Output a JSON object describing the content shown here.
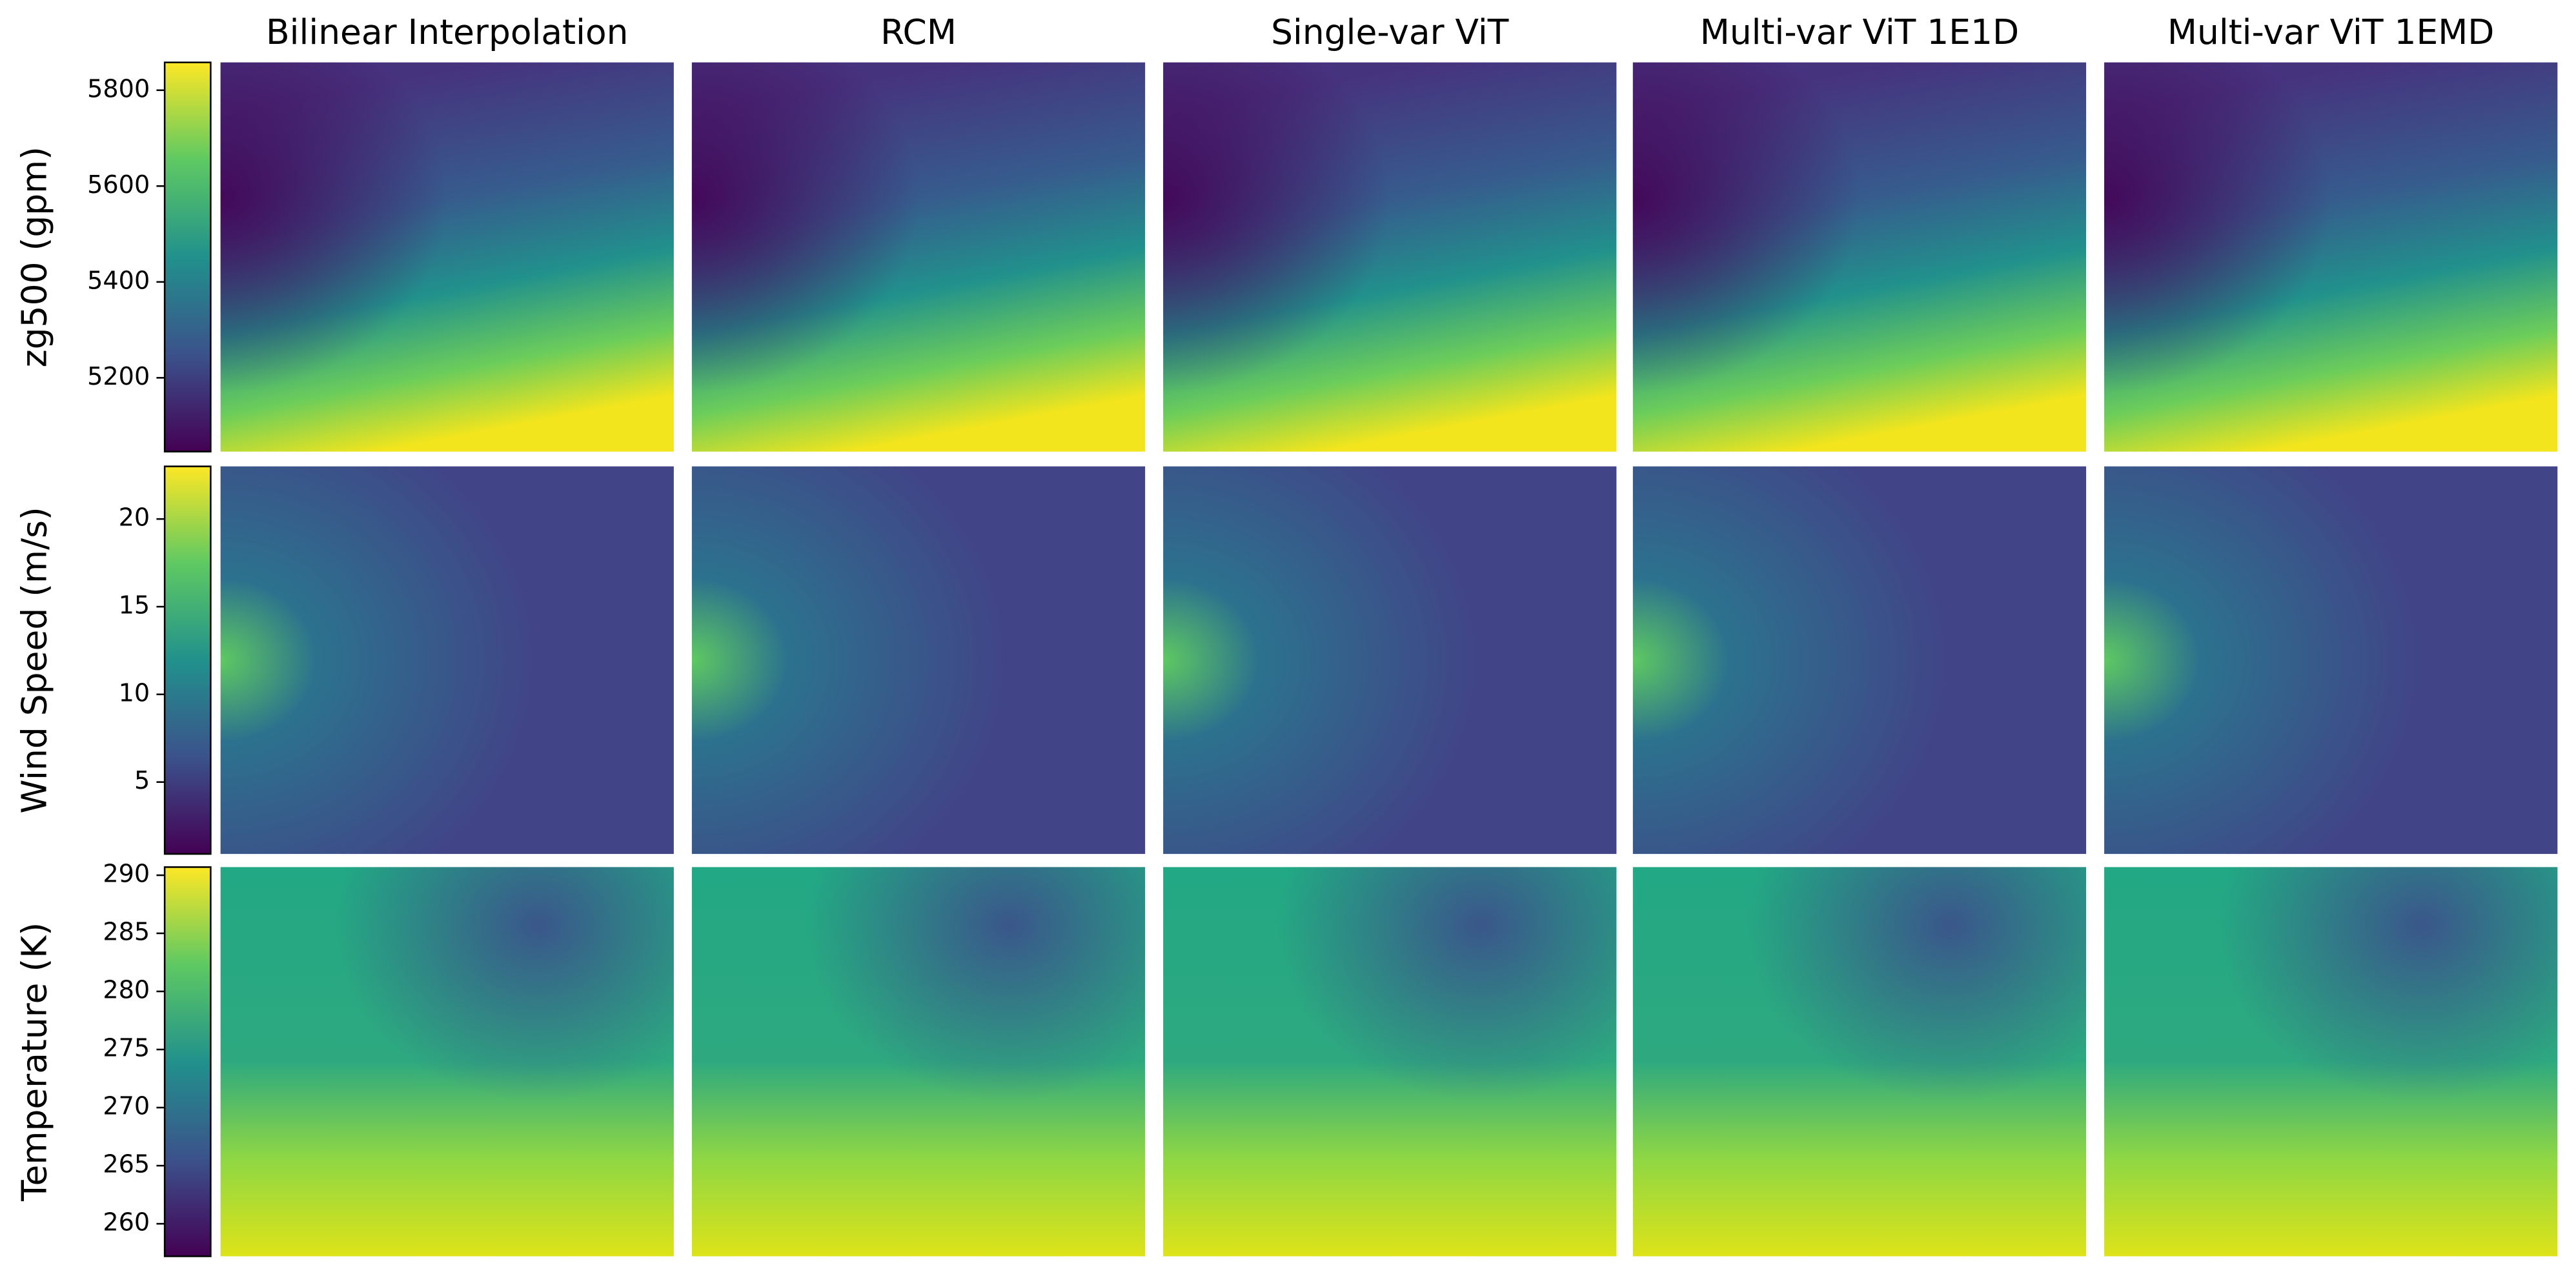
{
  "chart_data": {
    "type": "image-grid",
    "columns": [
      "Bilinear Interpolation",
      "RCM",
      "Single-var ViT",
      "Multi-var ViT 1E1D",
      "Multi-var ViT 1EMD"
    ],
    "rows": [
      {
        "label": "zg500 (gpm)",
        "clim": [
          5046,
          5858
        ],
        "ticks": [
          5200,
          5400,
          5600,
          5800
        ]
      },
      {
        "label": "Wind Speed (m/s)",
        "clim": [
          0.9,
          23
        ],
        "ticks": [
          5,
          10,
          15,
          20
        ]
      },
      {
        "label": "Temperature (K)",
        "clim": [
          257.2,
          290.7
        ],
        "ticks": [
          260,
          265,
          270,
          275,
          280,
          285,
          290
        ]
      }
    ]
  }
}
